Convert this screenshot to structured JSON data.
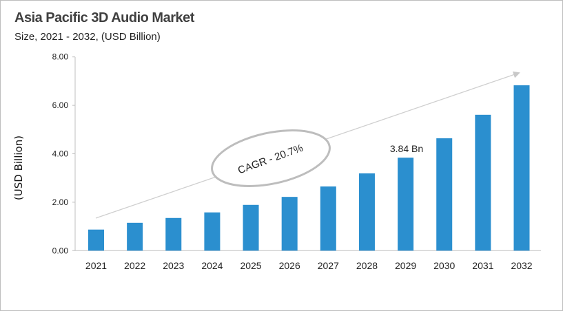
{
  "chart_data": {
    "type": "bar",
    "title": "Asia Pacific 3D Audio Market",
    "subtitle": "Size, 2021 - 2032, (USD Billion)",
    "ylabel": "(USD Billion)",
    "xlabel": "",
    "categories": [
      "2021",
      "2022",
      "2023",
      "2024",
      "2025",
      "2026",
      "2027",
      "2028",
      "2029",
      "2030",
      "2031",
      "2032"
    ],
    "values": [
      0.87,
      1.15,
      1.35,
      1.58,
      1.89,
      2.22,
      2.65,
      3.19,
      3.84,
      4.64,
      5.61,
      6.83
    ],
    "ylim": [
      0,
      8
    ],
    "yticks": [
      "0.00",
      "2.00",
      "4.00",
      "6.00",
      "8.00"
    ],
    "grid": false,
    "bar_color": "#2b8fcf",
    "annotations": {
      "data_label": "3.84 Bn",
      "data_label_category": "2029",
      "cagr": "CAGR - 20.7%"
    }
  }
}
